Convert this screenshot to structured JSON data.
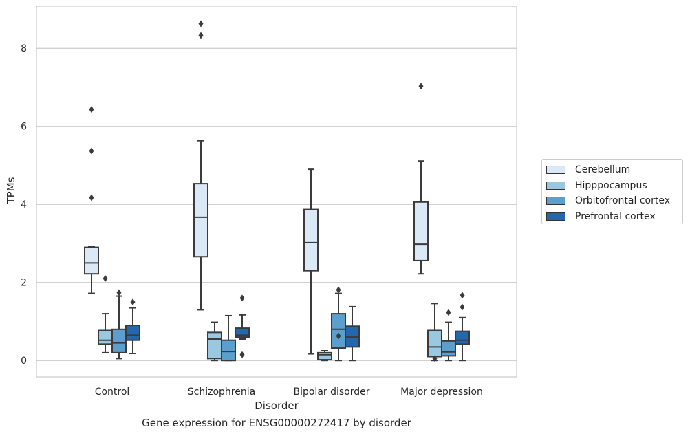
{
  "chart_data": {
    "type": "box",
    "xlabel": "Disorder",
    "ylabel": "TPMs",
    "ylim": [
      -0.4,
      9.1
    ],
    "yticks": [
      0,
      2,
      4,
      6,
      8
    ],
    "grid": "horizontal",
    "legend_position": "outside-right",
    "caption": "Gene expression for ENSG00000272417 by disorder",
    "categories": [
      "Control",
      "Schizophrenia",
      "Bipolar disorder",
      "Major depression"
    ],
    "series": [
      {
        "name": "Cerebellum",
        "color": "#dbe9f6",
        "boxes": [
          {
            "whislo": 1.72,
            "q1": 2.22,
            "med": 2.5,
            "q3": 2.9,
            "whishi": 2.92,
            "fliers": [
              4.17,
              5.37,
              6.43
            ]
          },
          {
            "whislo": 1.3,
            "q1": 2.66,
            "med": 3.67,
            "q3": 4.53,
            "whishi": 5.63,
            "fliers": [
              8.33,
              8.63
            ]
          },
          {
            "whislo": 0.17,
            "q1": 2.3,
            "med": 3.02,
            "q3": 3.87,
            "whishi": 4.9,
            "fliers": []
          },
          {
            "whislo": 2.22,
            "q1": 2.56,
            "med": 2.98,
            "q3": 4.06,
            "whishi": 5.11,
            "fliers": [
              7.03
            ]
          }
        ]
      },
      {
        "name": "Hipppocampus",
        "color": "#9ac8e0",
        "boxes": [
          {
            "whislo": 0.2,
            "q1": 0.42,
            "med": 0.52,
            "q3": 0.77,
            "whishi": 1.2,
            "fliers": [
              2.1
            ]
          },
          {
            "whislo": 0.0,
            "q1": 0.05,
            "med": 0.55,
            "q3": 0.72,
            "whishi": 0.98,
            "fliers": []
          },
          {
            "whislo": 0.0,
            "q1": 0.02,
            "med": 0.15,
            "q3": 0.2,
            "whishi": 0.25,
            "fliers": []
          },
          {
            "whislo": 0.0,
            "q1": 0.1,
            "med": 0.35,
            "q3": 0.77,
            "whishi": 1.46,
            "fliers": [
              0.05
            ]
          }
        ]
      },
      {
        "name": "Orbitofrontal cortex",
        "color": "#5a9fcd",
        "boxes": [
          {
            "whislo": 0.05,
            "q1": 0.2,
            "med": 0.45,
            "q3": 0.8,
            "whishi": 1.65,
            "fliers": [
              1.74
            ]
          },
          {
            "whislo": 0.0,
            "q1": 0.0,
            "med": 0.23,
            "q3": 0.52,
            "whishi": 1.15,
            "fliers": []
          },
          {
            "whislo": 0.0,
            "q1": 0.32,
            "med": 0.8,
            "q3": 1.2,
            "whishi": 1.72,
            "fliers": [
              0.63,
              1.81
            ]
          },
          {
            "whislo": 0.0,
            "q1": 0.12,
            "med": 0.22,
            "q3": 0.5,
            "whishi": 0.98,
            "fliers": [
              1.23
            ]
          }
        ]
      },
      {
        "name": "Prefrontal cortex",
        "color": "#2567ad",
        "boxes": [
          {
            "whislo": 0.18,
            "q1": 0.52,
            "med": 0.65,
            "q3": 0.9,
            "whishi": 1.35,
            "fliers": [
              1.5
            ]
          },
          {
            "whislo": 0.55,
            "q1": 0.6,
            "med": 0.65,
            "q3": 0.83,
            "whishi": 1.17,
            "fliers": [
              0.15,
              1.6
            ]
          },
          {
            "whislo": 0.0,
            "q1": 0.35,
            "med": 0.6,
            "q3": 0.88,
            "whishi": 1.38,
            "fliers": []
          },
          {
            "whislo": 0.0,
            "q1": 0.42,
            "med": 0.52,
            "q3": 0.75,
            "whishi": 1.1,
            "fliers": [
              1.37,
              1.67
            ]
          }
        ]
      }
    ]
  }
}
